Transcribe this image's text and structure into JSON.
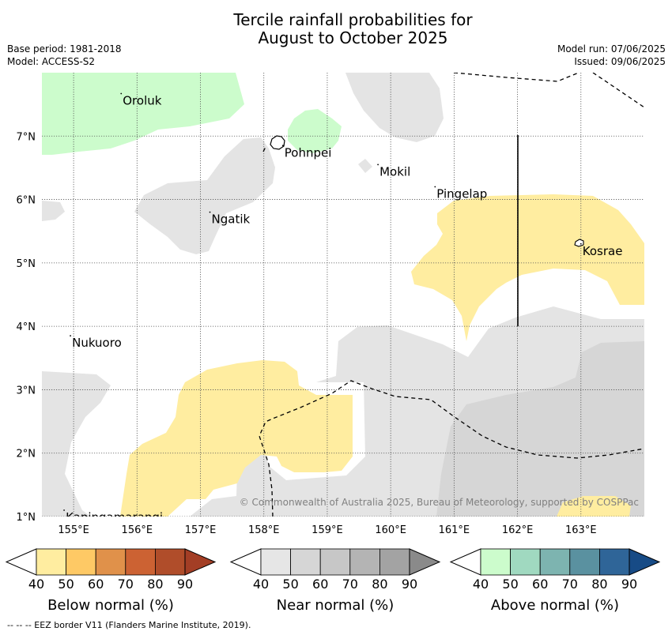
{
  "header": {
    "title_line1": "Tercile rainfall probabilities for",
    "title_line2": "August to October 2025",
    "base_period": "Base period: 1981-2018",
    "model": "Model: ACCESS-S2",
    "model_run": "Model run: 07/06/2025",
    "issued": "Issued: 09/06/2025"
  },
  "map": {
    "lon_ticks": [
      "155°E",
      "156°E",
      "157°E",
      "158°E",
      "159°E",
      "160°E",
      "161°E",
      "162°E",
      "163°E"
    ],
    "lat_ticks": [
      "1°N",
      "2°N",
      "3°N",
      "4°N",
      "5°N",
      "6°N",
      "7°N"
    ],
    "places": [
      {
        "name": "Oroluk",
        "lon": 155.75,
        "lat": 7.67
      },
      {
        "name": "Pohnpei",
        "lon": 158.3,
        "lat": 6.85
      },
      {
        "name": "Mokil",
        "lon": 159.8,
        "lat": 6.55
      },
      {
        "name": "Pingelap",
        "lon": 160.7,
        "lat": 6.2
      },
      {
        "name": "Ngatik",
        "lon": 157.15,
        "lat": 5.8
      },
      {
        "name": "Kosrae",
        "lon": 163.0,
        "lat": 5.3
      },
      {
        "name": "Nukuoro",
        "lon": 154.95,
        "lat": 3.85
      },
      {
        "name": "Kapingamarangi",
        "lon": 154.85,
        "lat": 1.1
      }
    ],
    "copyright": "© Commonwealth of Australia 2025, Bureau of Meteorology, supported by COSPPac",
    "colors": {
      "below_40": "#ffeda0",
      "near_40": "#e4e4e4",
      "near_50": "#d6d6d6",
      "above_40": "#ccfccc"
    }
  },
  "colorbars": [
    {
      "label": "Below normal (%)",
      "ticks": [
        "40",
        "50",
        "60",
        "70",
        "80",
        "90"
      ],
      "colors": [
        "#ffeda0",
        "#fec965",
        "#e0914a",
        "#cc6233",
        "#b04d2a",
        "#a33e25"
      ]
    },
    {
      "label": "Near normal (%)",
      "ticks": [
        "40",
        "50",
        "60",
        "70",
        "80",
        "90"
      ],
      "colors": [
        "#e6e6e6",
        "#d6d6d6",
        "#c7c7c7",
        "#b4b4b4",
        "#a3a3a3",
        "#8a8a8a"
      ]
    },
    {
      "label": "Above normal (%)",
      "ticks": [
        "40",
        "50",
        "60",
        "70",
        "80",
        "90"
      ],
      "colors": [
        "#ccfccc",
        "#a0d9c0",
        "#7db4b0",
        "#5a91a0",
        "#2f6598",
        "#174b86"
      ]
    }
  ],
  "footer": {
    "eez_note": "--  --  -- EEZ border V11 (Flanders Marine Institute, 2019)."
  }
}
